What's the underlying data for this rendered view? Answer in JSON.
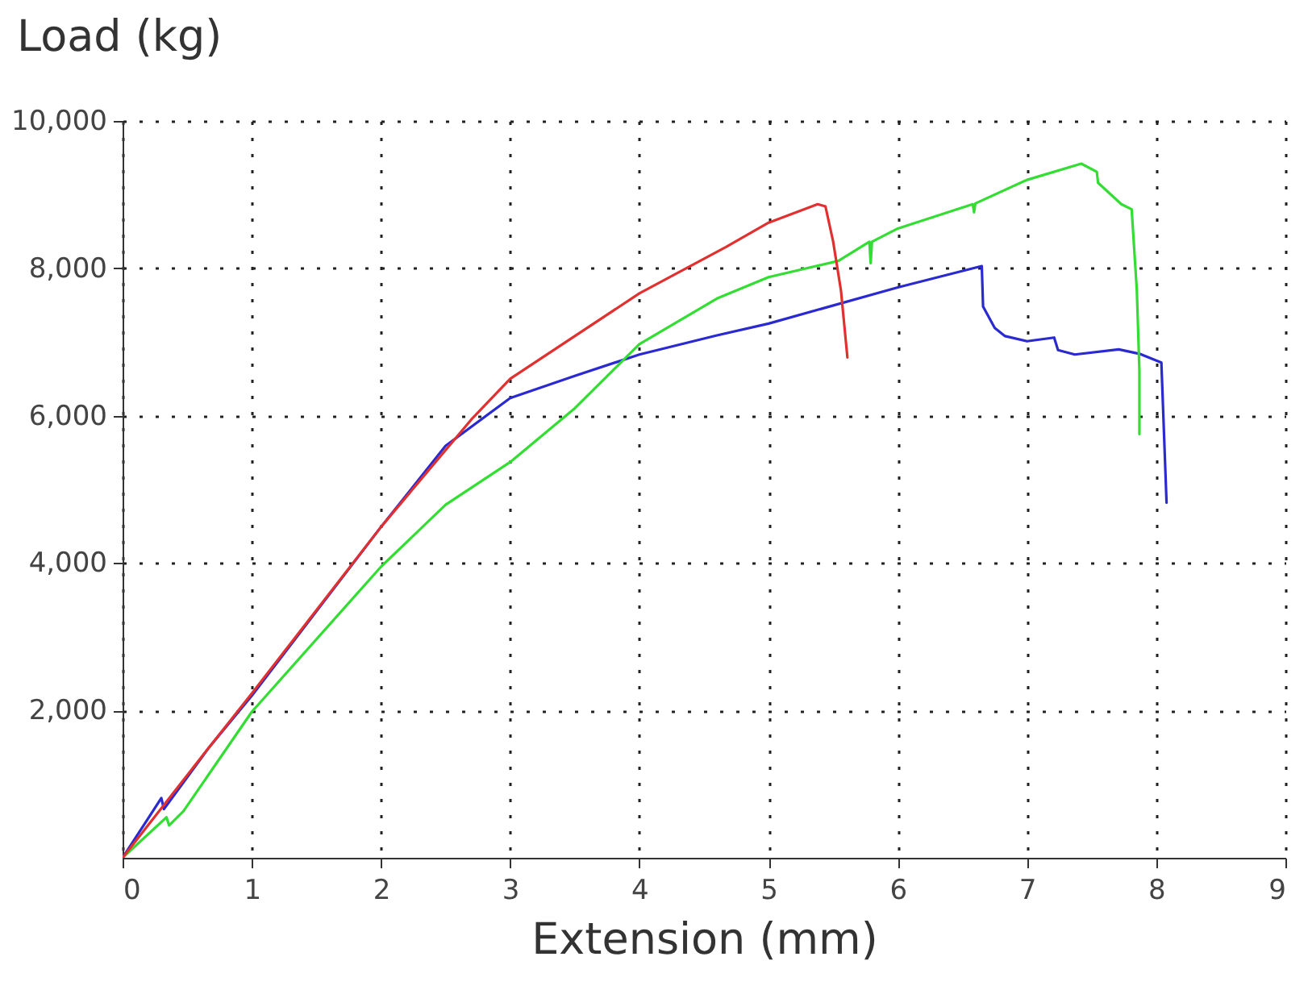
{
  "chart_data": {
    "type": "line",
    "xlabel": "Extension (mm)",
    "ylabel": "Load (kg)",
    "xlim": [
      0,
      9
    ],
    "xticks": [
      {
        "value": 0,
        "label": "0"
      },
      {
        "value": 1,
        "label": "1"
      },
      {
        "value": 2,
        "label": "2"
      },
      {
        "value": 3,
        "label": "3"
      },
      {
        "value": 4,
        "label": "4"
      },
      {
        "value": 5,
        "label": "5"
      },
      {
        "value": 6,
        "label": "6"
      },
      {
        "value": 7,
        "label": "7"
      },
      {
        "value": 8,
        "label": "8"
      },
      {
        "value": 9,
        "label": "9"
      }
    ],
    "ylim": [
      0,
      10000
    ],
    "yticks": [
      {
        "value": 2000,
        "label": "2,000"
      },
      {
        "value": 4000,
        "label": "4,000"
      },
      {
        "value": 6000,
        "label": "6,000"
      },
      {
        "value": 8000,
        "label": "8,000"
      },
      {
        "value": 10000,
        "label": "10,000"
      }
    ],
    "grid": true,
    "legend": false,
    "marker": "none",
    "line_style": "solid",
    "series": [
      {
        "color": "#2a2ad0",
        "x": [
          0,
          0.3,
          0.32,
          0.67,
          1,
          2,
          2.5,
          3,
          3.5,
          4,
          4.6,
          5,
          6,
          6.65,
          6.66,
          6.75,
          6.83,
          7,
          7.21,
          7.24,
          7.37,
          7.71,
          7.87,
          8.04,
          8.08
        ],
        "values": [
          0,
          810,
          660,
          1500,
          2200,
          4490,
          5590,
          6240,
          6540,
          6830,
          7090,
          7250,
          7740,
          8030,
          7480,
          7190,
          7080,
          7010,
          7060,
          6890,
          6830,
          6900,
          6840,
          6720,
          4820
        ]
      },
      {
        "color": "#33dd33",
        "x": [
          0,
          0.34,
          0.36,
          0.47,
          1,
          2,
          2.5,
          3,
          3.5,
          4,
          4.6,
          5,
          5.54,
          5.78,
          5.79,
          5.8,
          6,
          6.58,
          6.59,
          6.6,
          7,
          7.42,
          7.54,
          7.55,
          7.73,
          7.81,
          7.85,
          7.87,
          7.87
        ],
        "values": [
          0,
          550,
          440,
          630,
          1980,
          3950,
          4790,
          5370,
          6100,
          6970,
          7590,
          7880,
          8100,
          8360,
          8070,
          8360,
          8540,
          8870,
          8760,
          8880,
          9200,
          9420,
          9310,
          9160,
          8870,
          8800,
          7700,
          6610,
          5750
        ]
      },
      {
        "color": "#e03030",
        "x": [
          0,
          0.67,
          1,
          2,
          2.7,
          3,
          4,
          4.67,
          5,
          5.38,
          5.44,
          5.5,
          5.56,
          5.61
        ],
        "values": [
          0,
          1500,
          2230,
          4490,
          5950,
          6500,
          7660,
          8290,
          8620,
          8870,
          8840,
          8360,
          7700,
          6790
        ]
      }
    ]
  }
}
